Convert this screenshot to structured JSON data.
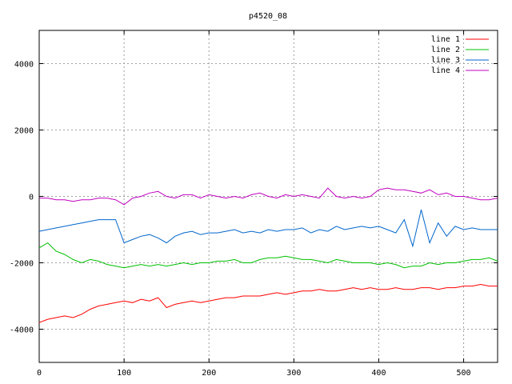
{
  "chart_data": {
    "type": "line",
    "title": "p4520_08",
    "xlabel": "",
    "ylabel": "",
    "xlim": [
      0,
      540
    ],
    "ylim": [
      -5000,
      5000
    ],
    "grid": true,
    "legend_position": "top-right",
    "x_ticks": [
      0,
      100,
      200,
      300,
      400,
      500
    ],
    "y_ticks": [
      -4000,
      -2000,
      0,
      2000,
      4000
    ],
    "series": [
      {
        "name": "line 1",
        "color": "#ff0000",
        "x": [
          0,
          10,
          20,
          30,
          40,
          50,
          60,
          70,
          80,
          90,
          100,
          110,
          120,
          130,
          140,
          150,
          160,
          170,
          180,
          190,
          200,
          210,
          220,
          230,
          240,
          250,
          260,
          270,
          280,
          290,
          300,
          310,
          320,
          330,
          340,
          350,
          360,
          370,
          380,
          390,
          400,
          410,
          420,
          430,
          440,
          450,
          460,
          470,
          480,
          490,
          500,
          510,
          520,
          530,
          540
        ],
        "y": [
          -3800,
          -3700,
          -3650,
          -3600,
          -3650,
          -3550,
          -3400,
          -3300,
          -3250,
          -3200,
          -3150,
          -3200,
          -3100,
          -3150,
          -3050,
          -3350,
          -3250,
          -3200,
          -3150,
          -3200,
          -3150,
          -3100,
          -3050,
          -3050,
          -3000,
          -3000,
          -3000,
          -2950,
          -2900,
          -2950,
          -2900,
          -2850,
          -2850,
          -2800,
          -2850,
          -2850,
          -2800,
          -2750,
          -2800,
          -2750,
          -2800,
          -2800,
          -2750,
          -2800,
          -2800,
          -2750,
          -2750,
          -2800,
          -2750,
          -2750,
          -2700,
          -2700,
          -2650,
          -2700,
          -2700
        ]
      },
      {
        "name": "line 2",
        "color": "#00c000",
        "x": [
          0,
          10,
          20,
          30,
          40,
          50,
          60,
          70,
          80,
          90,
          100,
          110,
          120,
          130,
          140,
          150,
          160,
          170,
          180,
          190,
          200,
          210,
          220,
          230,
          240,
          250,
          260,
          270,
          280,
          290,
          300,
          310,
          320,
          330,
          340,
          350,
          360,
          370,
          380,
          390,
          400,
          410,
          420,
          430,
          440,
          450,
          460,
          470,
          480,
          490,
          500,
          510,
          520,
          530,
          540
        ],
        "y": [
          -1550,
          -1400,
          -1650,
          -1750,
          -1900,
          -2000,
          -1900,
          -1950,
          -2050,
          -2100,
          -2150,
          -2100,
          -2050,
          -2100,
          -2050,
          -2100,
          -2050,
          -2000,
          -2050,
          -2000,
          -2000,
          -1950,
          -1950,
          -1900,
          -2000,
          -2000,
          -1900,
          -1850,
          -1850,
          -1800,
          -1850,
          -1900,
          -1900,
          -1950,
          -2000,
          -1900,
          -1950,
          -2000,
          -2000,
          -2000,
          -2050,
          -2000,
          -2050,
          -2150,
          -2100,
          -2100,
          -2000,
          -2050,
          -2000,
          -2000,
          -1950,
          -1900,
          -1900,
          -1850,
          -1950
        ]
      },
      {
        "name": "line 3",
        "color": "#0066cc",
        "x": [
          0,
          10,
          20,
          30,
          40,
          50,
          60,
          70,
          80,
          90,
          100,
          110,
          120,
          130,
          140,
          150,
          160,
          170,
          180,
          190,
          200,
          210,
          220,
          230,
          240,
          250,
          260,
          270,
          280,
          290,
          300,
          310,
          320,
          330,
          340,
          350,
          360,
          370,
          380,
          390,
          400,
          410,
          420,
          430,
          440,
          450,
          460,
          470,
          480,
          490,
          500,
          510,
          520,
          530,
          540
        ],
        "y": [
          -1050,
          -1000,
          -950,
          -900,
          -850,
          -800,
          -750,
          -700,
          -700,
          -700,
          -1400,
          -1300,
          -1200,
          -1150,
          -1250,
          -1400,
          -1200,
          -1100,
          -1050,
          -1150,
          -1100,
          -1100,
          -1050,
          -1000,
          -1100,
          -1050,
          -1100,
          -1000,
          -1050,
          -1000,
          -1000,
          -950,
          -1100,
          -1000,
          -1050,
          -900,
          -1000,
          -950,
          -900,
          -950,
          -900,
          -1000,
          -1100,
          -700,
          -1500,
          -400,
          -1400,
          -800,
          -1200,
          -900,
          -1000,
          -950,
          -1000,
          -1000,
          -1000
        ]
      },
      {
        "name": "line 4",
        "color": "#c000c0",
        "x": [
          0,
          10,
          20,
          30,
          40,
          50,
          60,
          70,
          80,
          90,
          100,
          110,
          120,
          130,
          140,
          150,
          160,
          170,
          180,
          190,
          200,
          210,
          220,
          230,
          240,
          250,
          260,
          270,
          280,
          290,
          300,
          310,
          320,
          330,
          340,
          350,
          360,
          370,
          380,
          390,
          400,
          410,
          420,
          430,
          440,
          450,
          460,
          470,
          480,
          490,
          500,
          510,
          520,
          530,
          540
        ],
        "y": [
          -50,
          -50,
          -100,
          -100,
          -150,
          -100,
          -100,
          -50,
          -50,
          -100,
          -250,
          -50,
          0,
          100,
          150,
          0,
          -50,
          50,
          50,
          -50,
          50,
          0,
          -50,
          0,
          -50,
          50,
          100,
          0,
          -50,
          50,
          0,
          50,
          0,
          -50,
          250,
          0,
          -50,
          0,
          -50,
          0,
          200,
          250,
          200,
          200,
          150,
          100,
          200,
          50,
          100,
          0,
          0,
          -50,
          -100,
          -100,
          -50
        ]
      }
    ]
  }
}
